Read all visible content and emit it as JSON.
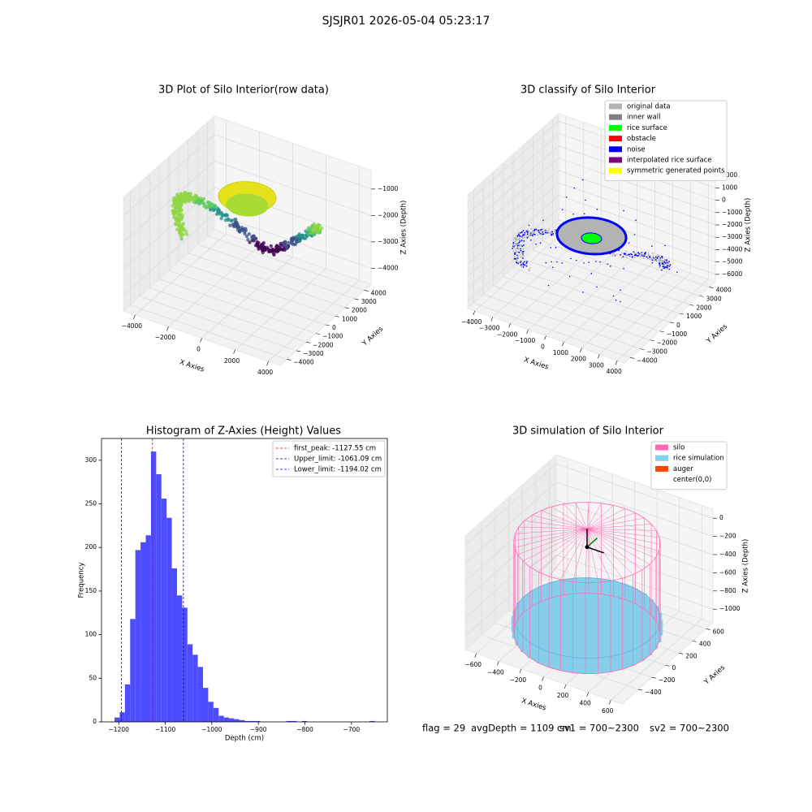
{
  "title": "SJSJR01 2026-05-04 05:23:17",
  "chart_data": [
    {
      "type": "scatter3d",
      "title": "3D Plot of Silo Interior(row data)",
      "x_label": "X Axies",
      "y_label": "Y Axies",
      "z_label": "Z Axies (Depth)",
      "xlim": [
        -4700,
        4700
      ],
      "ylim": [
        -4700,
        4700
      ],
      "zlim": [
        -4600,
        -300
      ],
      "xticks": [
        {
          "value": -4000,
          "label": "−4000"
        },
        {
          "value": -2000,
          "label": "−2000"
        },
        0,
        2000,
        4000
      ],
      "yticks": [
        {
          "value": -4000,
          "label": "−4000"
        },
        {
          "value": -3000,
          "label": "−3000"
        },
        {
          "value": -2000,
          "label": "−2000"
        },
        {
          "value": -1000,
          "label": "−1000"
        },
        0,
        1000,
        2000,
        3000,
        4000
      ],
      "zticks": [
        {
          "value": -4000,
          "label": "−4000"
        },
        {
          "value": -3000,
          "label": "−3000"
        },
        {
          "value": -2000,
          "label": "−2000"
        },
        {
          "value": -1000,
          "label": "−1000"
        }
      ]
    },
    {
      "type": "scatter3d",
      "title": "3D classify of Silo Interior",
      "x_label": "X Axies",
      "y_label": "Y Axies",
      "z_label": "Z Axies (Depth)",
      "xlim": [
        -4400,
        4400
      ],
      "ylim": [
        -4600,
        4600
      ],
      "zlim": [
        -6600,
        2600
      ],
      "xticks": [
        {
          "value": -4000,
          "label": "−4000"
        },
        {
          "value": -3000,
          "label": "−3000"
        },
        {
          "value": -2000,
          "label": "−2000"
        },
        {
          "value": -1000,
          "label": "−1000"
        },
        0,
        1000,
        2000,
        3000,
        4000
      ],
      "yticks": [
        {
          "value": -4000,
          "label": "−4000"
        },
        {
          "value": -3000,
          "label": "−3000"
        },
        {
          "value": -2000,
          "label": "−2000"
        },
        {
          "value": -1000,
          "label": "−1000"
        },
        0,
        1000,
        2000,
        3000,
        4000
      ],
      "zticks": [
        {
          "value": -6000,
          "label": "−6000"
        },
        {
          "value": -5000,
          "label": "−5000"
        },
        {
          "value": -4000,
          "label": "−4000"
        },
        {
          "value": -3000,
          "label": "−3000"
        },
        {
          "value": -2000,
          "label": "−2000"
        },
        {
          "value": -1000,
          "label": "−1000"
        },
        0,
        1000,
        2000
      ],
      "legend": [
        {
          "name": "original data",
          "color": "#b3b3b3"
        },
        {
          "name": "inner wall",
          "color": "#808080"
        },
        {
          "name": "rice surface",
          "color": "#00ff00"
        },
        {
          "name": "obstacle",
          "color": "#ff0000"
        },
        {
          "name": "noise",
          "color": "#0000ff"
        },
        {
          "name": "interpolated rice surface",
          "color": "#800080"
        },
        {
          "name": "symmetric generated points",
          "color": "#ffff00"
        }
      ]
    },
    {
      "type": "histogram",
      "title": "Histogram of Z-Axies (Height) Values",
      "x_label": "Depth (cm)",
      "y_label": "Frequency",
      "color": "#4d4dff",
      "xlim": [
        -1237,
        -623
      ],
      "ylim": [
        0,
        325
      ],
      "xticks": [
        {
          "value": -1200,
          "label": "−1200"
        },
        {
          "value": -1100,
          "label": "−1100"
        },
        {
          "value": -1000,
          "label": "−1000"
        },
        {
          "value": -900,
          "label": "−900"
        },
        {
          "value": -800,
          "label": "−800"
        },
        {
          "value": -700,
          "label": "−700"
        }
      ],
      "yticks": [
        0,
        50,
        100,
        150,
        200,
        250,
        300
      ],
      "bins": [
        -1209,
        -1197.82,
        -1186.64,
        -1175.46,
        -1164.28,
        -1153.1,
        -1141.92,
        -1130.74,
        -1119.56,
        -1108.38,
        -1097.2,
        -1086.02,
        -1074.84,
        -1063.66,
        -1052.48,
        -1041.3,
        -1030.12,
        -1018.94,
        -1007.76,
        -996.58,
        -985.4,
        -974.22,
        -963.04,
        -951.86,
        -940.68,
        -929.5,
        -918.32,
        -907.14,
        -895.96,
        -884.78,
        -873.6,
        -862.42,
        -851.24,
        -840.06,
        -828.88,
        -817.7,
        -806.52,
        -795.34,
        -784.16,
        -772.98,
        -761.8,
        -750.62,
        -739.44,
        -728.26,
        -717.08,
        -705.9,
        -694.72,
        -683.54,
        -672.36,
        -661.18,
        -650
      ],
      "counts": [
        5,
        11,
        43,
        118,
        197,
        206,
        214,
        310,
        284,
        256,
        234,
        176,
        145,
        131,
        89,
        77,
        63,
        39,
        23,
        16,
        7,
        5,
        4,
        3,
        2,
        1,
        1,
        1,
        0,
        0,
        0,
        0,
        0,
        1,
        1,
        0,
        1,
        0,
        0,
        0,
        0,
        0,
        0,
        0,
        0,
        0,
        0,
        0,
        0,
        1
      ],
      "vlines": [
        {
          "name": "first_peak: -1127.55 cm",
          "value": -1127.55,
          "color": "#ff0000"
        },
        {
          "name": "Upper_limit: -1061.09 cm",
          "value": -1061.09,
          "color": "#0000cc"
        },
        {
          "name": "Lower_limit: -1194.02 cm",
          "value": -1194.02,
          "color": "#0000ff"
        }
      ],
      "legend_position": "upper right"
    },
    {
      "type": "surface3d",
      "title": "3D simulation of Silo Interior",
      "x_label": "X Axies",
      "y_label": "Y Axies",
      "z_label": "Z Axies (Depth)",
      "xlim": [
        -700,
        700
      ],
      "ylim": [
        -640,
        700
      ],
      "zlim": [
        -1150,
        100
      ],
      "xticks": [
        {
          "value": -600,
          "label": "−600"
        },
        {
          "value": -400,
          "label": "−400"
        },
        {
          "value": -200,
          "label": "−200"
        },
        0,
        200,
        400,
        600
      ],
      "yticks": [
        {
          "value": -400,
          "label": "−400"
        },
        {
          "value": -200,
          "label": "−200"
        },
        0,
        200,
        400,
        600
      ],
      "zticks": [
        {
          "value": -1000,
          "label": "−1000"
        },
        {
          "value": -800,
          "label": "−800"
        },
        {
          "value": -600,
          "label": "−600"
        },
        {
          "value": -400,
          "label": "−400"
        },
        {
          "value": -200,
          "label": "−200"
        },
        0
      ],
      "legend": [
        {
          "name": "silo",
          "color": "#ff69b4"
        },
        {
          "name": "rice simulation",
          "color": "#87ceeb"
        },
        {
          "name": "auger",
          "color": "#ff4500"
        },
        {
          "name": "center(0,0)",
          "color": "#ffffff"
        }
      ]
    }
  ],
  "footer": [
    "flag = 29",
    "avgDepth = 1109 cm",
    "sv1 = 700~2300",
    "sv2 = 700~2300"
  ]
}
